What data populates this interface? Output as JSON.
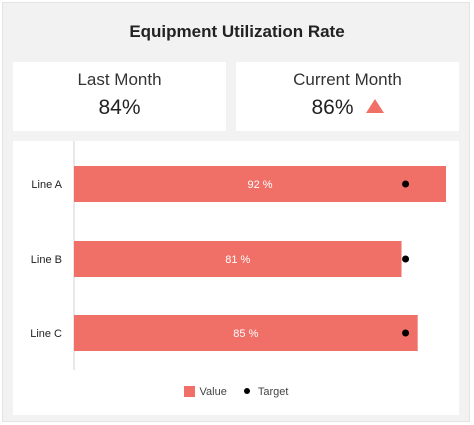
{
  "title": "Equipment Utilization Rate",
  "kpis": {
    "last_month": {
      "label": "Last Month",
      "value": "84%"
    },
    "current_month": {
      "label": "Current Month",
      "value": "86%",
      "trend": "up-triangle-icon"
    }
  },
  "colors": {
    "bar": "#f07068",
    "target": "#000000",
    "trend_up": "#f07068"
  },
  "legend": {
    "value_label": "Value",
    "target_label": "Target"
  },
  "chart_data": {
    "type": "bar",
    "orientation": "horizontal",
    "title": "",
    "categories": [
      "Line A",
      "Line B",
      "Line C"
    ],
    "series": [
      {
        "name": "Value",
        "values": [
          92,
          81,
          85
        ],
        "labels": [
          "92 %",
          "81 %",
          "85 %"
        ]
      },
      {
        "name": "Target",
        "values": [
          82,
          82,
          82
        ]
      }
    ],
    "xlim": [
      0,
      92
    ],
    "grid": false,
    "legend_position": "bottom"
  }
}
